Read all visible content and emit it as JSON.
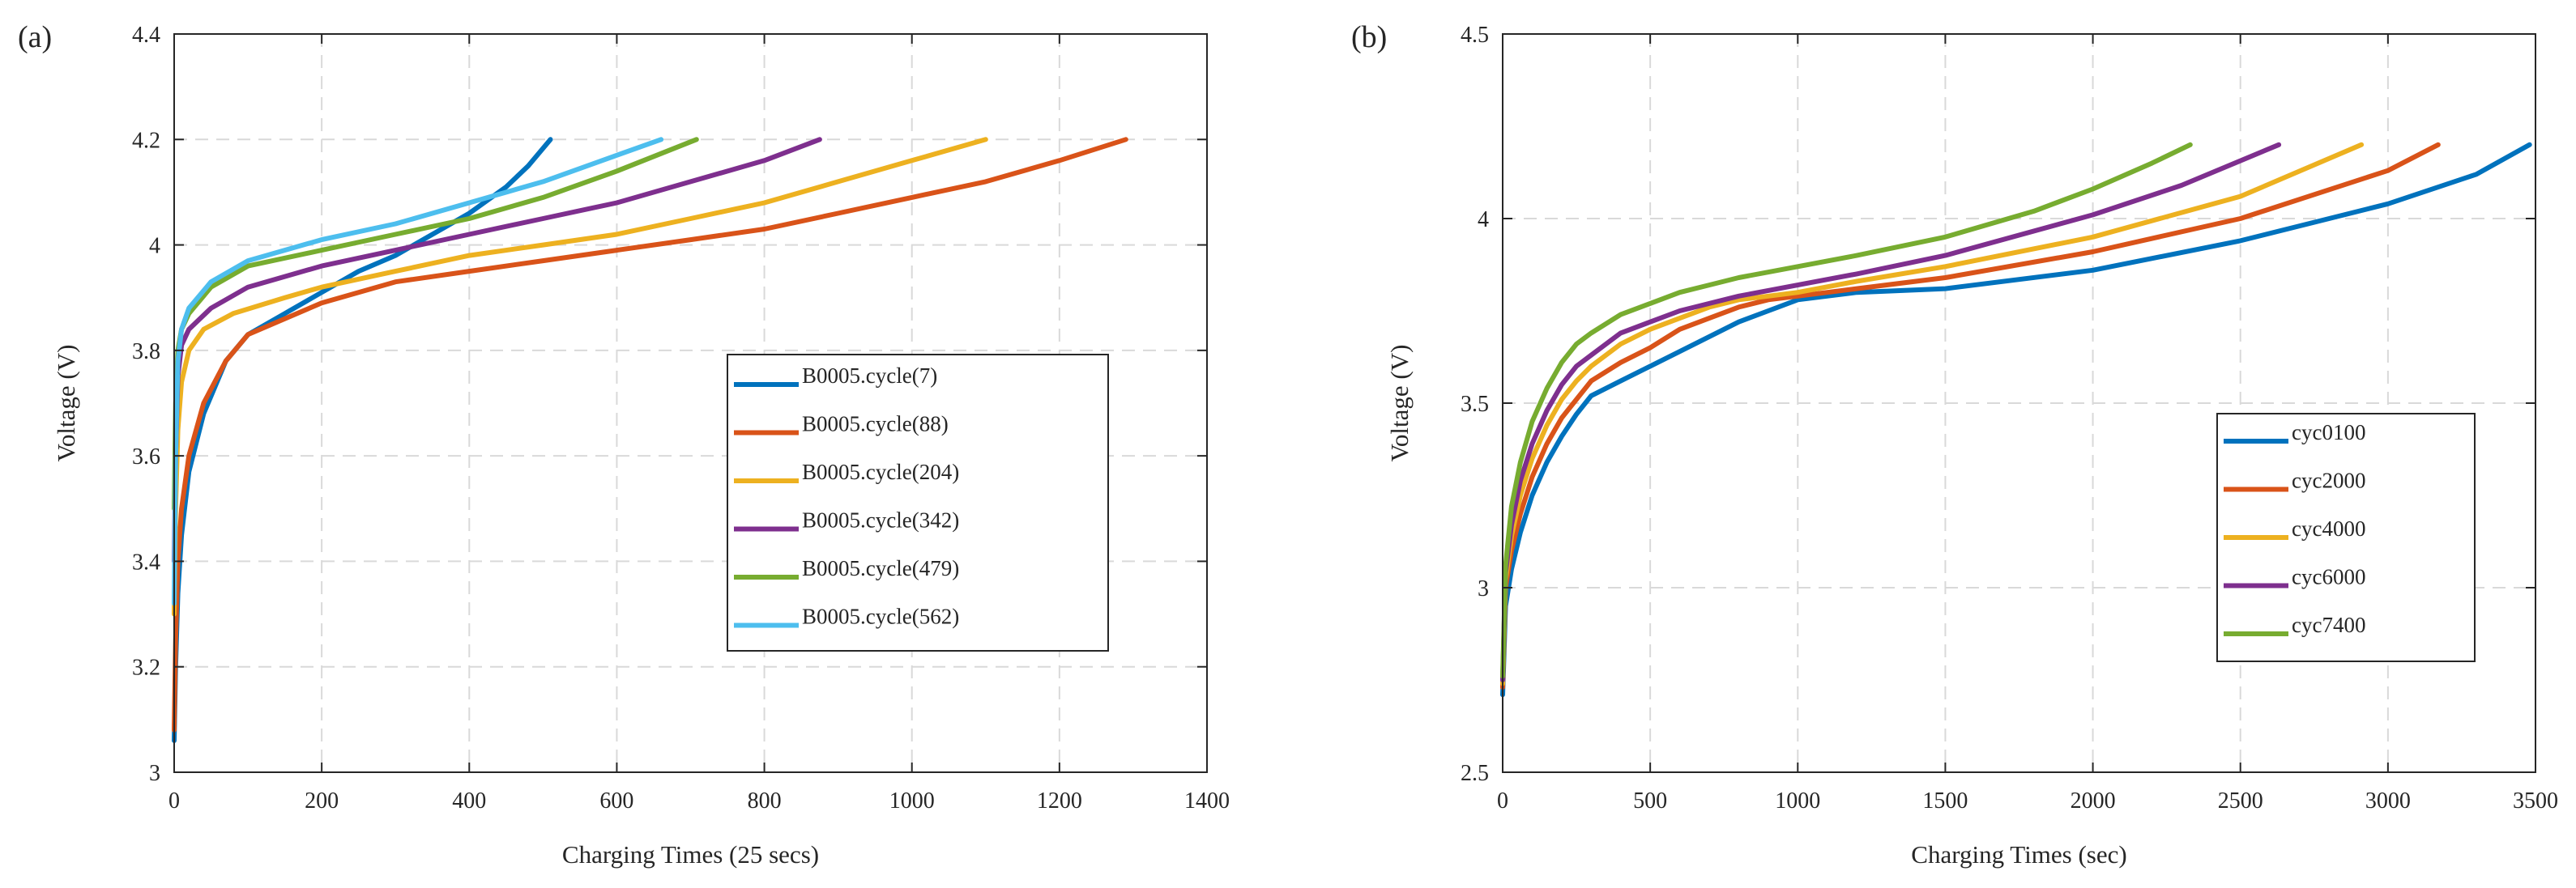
{
  "chart_data": [
    {
      "type": "line",
      "panel_label": "(a)",
      "xlabel": "Charging Times (25 secs)",
      "ylabel": "Voltage (V)",
      "xlim": [
        0,
        1400
      ],
      "ylim": [
        3,
        4.4
      ],
      "xticks": [
        0,
        200,
        400,
        600,
        800,
        1000,
        1200,
        1400
      ],
      "xtick_labels": [
        "0",
        "200",
        "400",
        "600",
        "800",
        "1000",
        "1200",
        "1400"
      ],
      "yticks": [
        3,
        3.2,
        3.4,
        3.6,
        3.8,
        4,
        4.2,
        4.4
      ],
      "ytick_labels": [
        "3",
        "3.2",
        "3.4",
        "3.6",
        "3.8",
        "4",
        "4.2",
        "4.4"
      ],
      "grid": true,
      "legend_position": "right-center",
      "series": [
        {
          "name": "B0005.cycle(7)",
          "color": "#0072BD",
          "x": [
            0,
            2,
            5,
            10,
            20,
            40,
            70,
            100,
            150,
            200,
            250,
            300,
            350,
            400,
            450,
            480,
            510
          ],
          "y": [
            3.06,
            3.2,
            3.34,
            3.45,
            3.57,
            3.68,
            3.78,
            3.83,
            3.87,
            3.91,
            3.95,
            3.98,
            4.02,
            4.06,
            4.11,
            4.15,
            4.2
          ]
        },
        {
          "name": "B0005.cycle(88)",
          "color": "#D95319",
          "x": [
            0,
            2,
            5,
            10,
            20,
            40,
            70,
            100,
            150,
            200,
            300,
            400,
            500,
            600,
            700,
            800,
            900,
            1000,
            1100,
            1200,
            1290
          ],
          "y": [
            3.08,
            3.25,
            3.4,
            3.5,
            3.6,
            3.7,
            3.78,
            3.83,
            3.86,
            3.89,
            3.93,
            3.95,
            3.97,
            3.99,
            4.01,
            4.03,
            4.06,
            4.09,
            4.12,
            4.16,
            4.2
          ]
        },
        {
          "name": "B0005.cycle(204)",
          "color": "#EDB120",
          "x": [
            0,
            2,
            5,
            10,
            20,
            40,
            80,
            150,
            200,
            300,
            400,
            500,
            600,
            700,
            800,
            900,
            1000,
            1100
          ],
          "y": [
            3.3,
            3.5,
            3.65,
            3.74,
            3.8,
            3.84,
            3.87,
            3.9,
            3.92,
            3.95,
            3.98,
            4.0,
            4.02,
            4.05,
            4.08,
            4.12,
            4.16,
            4.2
          ]
        },
        {
          "name": "B0005.cycle(342)",
          "color": "#7E2F8E",
          "x": [
            0,
            2,
            5,
            10,
            20,
            50,
            100,
            200,
            300,
            400,
            500,
            600,
            700,
            800,
            875
          ],
          "y": [
            3.4,
            3.6,
            3.75,
            3.81,
            3.84,
            3.88,
            3.92,
            3.96,
            3.99,
            4.02,
            4.05,
            4.08,
            4.12,
            4.16,
            4.2
          ]
        },
        {
          "name": "B0005.cycle(479)",
          "color": "#77AC30",
          "x": [
            0,
            2,
            5,
            10,
            20,
            50,
            100,
            200,
            300,
            400,
            500,
            600,
            708
          ],
          "y": [
            3.5,
            3.7,
            3.8,
            3.84,
            3.87,
            3.92,
            3.96,
            3.99,
            4.02,
            4.05,
            4.09,
            4.14,
            4.2
          ]
        },
        {
          "name": "B0005.cycle(562)",
          "color": "#4DBEEE",
          "x": [
            0,
            2,
            5,
            10,
            20,
            50,
            100,
            200,
            300,
            400,
            500,
            600,
            660
          ],
          "y": [
            3.32,
            3.6,
            3.78,
            3.84,
            3.88,
            3.93,
            3.97,
            4.01,
            4.04,
            4.08,
            4.12,
            4.17,
            4.2
          ]
        }
      ]
    },
    {
      "type": "line",
      "panel_label": "(b)",
      "xlabel": "Charging Times (sec)",
      "ylabel": "Voltage (V)",
      "xlim": [
        0,
        3500
      ],
      "ylim": [
        2.5,
        4.5
      ],
      "xticks": [
        0,
        500,
        1000,
        1500,
        2000,
        2500,
        3000,
        3500
      ],
      "xtick_labels": [
        "0",
        "500",
        "1000",
        "1500",
        "2000",
        "2500",
        "3000",
        "3500"
      ],
      "yticks": [
        2.5,
        3,
        3.5,
        4,
        4.5
      ],
      "ytick_labels": [
        "2.5",
        "3",
        "3.5",
        "4",
        "4.5"
      ],
      "grid": true,
      "legend_position": "right-center",
      "series": [
        {
          "name": "cyc0100",
          "color": "#0072BD",
          "x": [
            0,
            10,
            30,
            60,
            100,
            150,
            200,
            250,
            300,
            400,
            500,
            600,
            700,
            800,
            900,
            1000,
            1200,
            1500,
            2000,
            2500,
            3000,
            3300,
            3480
          ],
          "y": [
            2.71,
            2.95,
            3.05,
            3.15,
            3.25,
            3.34,
            3.41,
            3.47,
            3.52,
            3.56,
            3.6,
            3.64,
            3.68,
            3.72,
            3.75,
            3.78,
            3.8,
            3.81,
            3.86,
            3.94,
            4.04,
            4.12,
            4.2
          ]
        },
        {
          "name": "cyc2000",
          "color": "#D95319",
          "x": [
            0,
            10,
            30,
            60,
            100,
            150,
            200,
            250,
            300,
            400,
            500,
            600,
            700,
            800,
            900,
            1000,
            1200,
            1500,
            2000,
            2500,
            3000,
            3170
          ],
          "y": [
            2.73,
            3.0,
            3.1,
            3.2,
            3.3,
            3.39,
            3.46,
            3.51,
            3.56,
            3.61,
            3.65,
            3.7,
            3.73,
            3.76,
            3.78,
            3.79,
            3.81,
            3.84,
            3.91,
            4.0,
            4.13,
            4.2
          ]
        },
        {
          "name": "cyc4000",
          "color": "#EDB120",
          "x": [
            0,
            10,
            30,
            60,
            100,
            150,
            200,
            250,
            300,
            400,
            500,
            600,
            700,
            800,
            900,
            1000,
            1200,
            1500,
            2000,
            2500,
            2910
          ],
          "y": [
            2.74,
            3.02,
            3.14,
            3.25,
            3.35,
            3.44,
            3.51,
            3.56,
            3.6,
            3.66,
            3.7,
            3.73,
            3.76,
            3.78,
            3.79,
            3.8,
            3.83,
            3.87,
            3.95,
            4.06,
            4.2
          ]
        },
        {
          "name": "cyc6000",
          "color": "#7E2F8E",
          "x": [
            0,
            10,
            30,
            60,
            100,
            150,
            200,
            250,
            300,
            400,
            500,
            600,
            700,
            800,
            1000,
            1200,
            1500,
            2000,
            2300,
            2630
          ],
          "y": [
            2.75,
            3.04,
            3.17,
            3.29,
            3.39,
            3.48,
            3.55,
            3.6,
            3.63,
            3.69,
            3.72,
            3.75,
            3.77,
            3.79,
            3.82,
            3.85,
            3.9,
            4.01,
            4.09,
            4.2
          ]
        },
        {
          "name": "cyc7400",
          "color": "#77AC30",
          "x": [
            0,
            10,
            30,
            60,
            100,
            150,
            200,
            250,
            300,
            400,
            500,
            600,
            700,
            800,
            1000,
            1200,
            1500,
            1800,
            2000,
            2200,
            2330
          ],
          "y": [
            2.76,
            3.06,
            3.22,
            3.34,
            3.45,
            3.54,
            3.61,
            3.66,
            3.69,
            3.74,
            3.77,
            3.8,
            3.82,
            3.84,
            3.87,
            3.9,
            3.95,
            4.02,
            4.08,
            4.15,
            4.2
          ]
        }
      ]
    }
  ]
}
